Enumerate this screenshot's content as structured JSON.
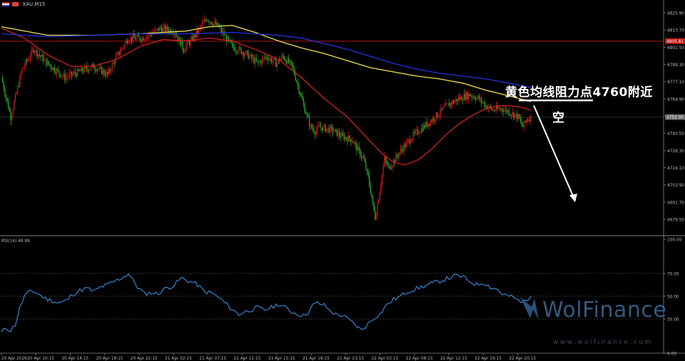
{
  "header": {
    "symbol_label": "XAU,M15"
  },
  "chart_data": [
    {
      "type": "candlestick",
      "symbol": "XAU",
      "timeframe": "M15",
      "ylim": [
        4670.0,
        4830.0
      ],
      "y_ticks": [
        "4825.90",
        "4813.70",
        "4801.50",
        "4789.30",
        "4777.10",
        "4764.90",
        "4752.70",
        "4740.50",
        "4728.30",
        "4716.10",
        "4703.90",
        "4691.70",
        "4679.50"
      ],
      "x_ticks": [
        "20 Apr 2026",
        "20 Apr 10:15",
        "20 Apr 14:15",
        "20 Apr 18:15",
        "20 Apr 22:15",
        "21 Apr 02:15",
        "21 Apr 07:15",
        "21 Apr 11:15",
        "21 Apr 15:15",
        "21 Apr 19:15",
        "21 Apr 23:15",
        "22 Apr 03:15",
        "22 Apr 08:15",
        "22 Apr 12:15",
        "22 Apr 16:15",
        "22 Apr 20:15"
      ],
      "resistance_label": "4805.81",
      "current_price_label": "4752.00",
      "close_path": [
        [
          0,
          4780
        ],
        [
          8,
          4752
        ],
        [
          18,
          4786
        ],
        [
          28,
          4800
        ],
        [
          40,
          4790
        ],
        [
          55,
          4780
        ],
        [
          70,
          4785
        ],
        [
          80,
          4788
        ],
        [
          92,
          4782
        ],
        [
          100,
          4795
        ],
        [
          110,
          4808
        ],
        [
          122,
          4808
        ],
        [
          138,
          4815
        ],
        [
          150,
          4813
        ],
        [
          158,
          4800
        ],
        [
          168,
          4810
        ],
        [
          178,
          4822
        ],
        [
          188,
          4816
        ],
        [
          200,
          4802
        ],
        [
          212,
          4797
        ],
        [
          222,
          4790
        ],
        [
          230,
          4795
        ],
        [
          238,
          4790
        ],
        [
          244,
          4795
        ],
        [
          252,
          4788
        ],
        [
          258,
          4772
        ],
        [
          262,
          4760
        ],
        [
          268,
          4745
        ],
        [
          272,
          4742
        ],
        [
          276,
          4745
        ],
        [
          280,
          4744
        ],
        [
          286,
          4743
        ],
        [
          296,
          4738
        ],
        [
          304,
          4736
        ],
        [
          308,
          4730
        ],
        [
          314,
          4722
        ],
        [
          318,
          4709
        ],
        [
          322,
          4690
        ],
        [
          324,
          4681
        ],
        [
          328,
          4700
        ],
        [
          332,
          4722
        ],
        [
          336,
          4716
        ],
        [
          346,
          4728
        ],
        [
          356,
          4738
        ],
        [
          366,
          4745
        ],
        [
          376,
          4752
        ],
        [
          386,
          4760
        ],
        [
          396,
          4765
        ],
        [
          406,
          4768
        ],
        [
          414,
          4765
        ],
        [
          420,
          4760
        ],
        [
          426,
          4757
        ],
        [
          434,
          4758
        ],
        [
          442,
          4755
        ],
        [
          448,
          4752
        ],
        [
          452,
          4745
        ],
        [
          455,
          4750
        ],
        [
          459,
          4752
        ]
      ],
      "series": [
        {
          "name": "",
          "color": "#d21f1f",
          "values": [
            [
              0,
              4815
            ],
            [
              20,
              4808
            ],
            [
              40,
              4796
            ],
            [
              60,
              4788
            ],
            [
              80,
              4788
            ],
            [
              100,
              4793
            ],
            [
              120,
              4802
            ],
            [
              140,
              4807
            ],
            [
              160,
              4806
            ],
            [
              180,
              4808
            ],
            [
              200,
              4806
            ],
            [
              220,
              4800
            ],
            [
              240,
              4793
            ],
            [
              260,
              4780
            ],
            [
              280,
              4765
            ],
            [
              300,
              4752
            ],
            [
              316,
              4738
            ],
            [
              330,
              4726
            ],
            [
              340,
              4720
            ],
            [
              350,
              4718
            ],
            [
              362,
              4722
            ],
            [
              374,
              4730
            ],
            [
              386,
              4740
            ],
            [
              398,
              4748
            ],
            [
              410,
              4754
            ],
            [
              420,
              4758
            ],
            [
              430,
              4760
            ],
            [
              440,
              4760
            ],
            [
              450,
              4759
            ],
            [
              459,
              4757
            ]
          ]
        },
        {
          "name": "",
          "color": "#f1e24a",
          "values": [
            [
              0,
              4816
            ],
            [
              40,
              4810
            ],
            [
              80,
              4810
            ],
            [
              120,
              4811
            ],
            [
              160,
              4813
            ],
            [
              180,
              4816
            ],
            [
              200,
              4817
            ],
            [
              220,
              4812
            ],
            [
              240,
              4806
            ],
            [
              260,
              4801
            ],
            [
              280,
              4797
            ],
            [
              300,
              4792
            ],
            [
              320,
              4787
            ],
            [
              340,
              4784
            ],
            [
              360,
              4781
            ],
            [
              380,
              4779
            ],
            [
              400,
              4776
            ],
            [
              420,
              4771
            ],
            [
              440,
              4767
            ],
            [
              459,
              4763
            ]
          ]
        },
        {
          "name": "",
          "color": "#2233dd",
          "values": [
            [
              0,
              4811
            ],
            [
              40,
              4809
            ],
            [
              80,
              4810
            ],
            [
              120,
              4811
            ],
            [
              160,
              4811
            ],
            [
              200,
              4812
            ],
            [
              240,
              4810
            ],
            [
              260,
              4808
            ],
            [
              280,
              4804
            ],
            [
              300,
              4800
            ],
            [
              320,
              4795
            ],
            [
              340,
              4790
            ],
            [
              360,
              4786
            ],
            [
              380,
              4783
            ],
            [
              400,
              4781
            ],
            [
              420,
              4779
            ],
            [
              440,
              4776
            ],
            [
              459,
              4773
            ]
          ]
        }
      ],
      "annotation": {
        "line1": "黄色均线阻力点4760附近",
        "line2": "空"
      }
    },
    {
      "type": "line",
      "name": "RSI(14) 48.99",
      "ylim": [
        0,
        100
      ],
      "y_ticks": [
        "100.00",
        "70.00",
        "50.00",
        "30.00",
        "0.00"
      ],
      "levels": [
        70,
        50,
        30
      ],
      "color": "#3d8ee0",
      "values": [
        [
          0,
          18
        ],
        [
          4,
          22
        ],
        [
          8,
          20
        ],
        [
          12,
          25
        ],
        [
          16,
          40
        ],
        [
          20,
          50
        ],
        [
          26,
          55
        ],
        [
          32,
          52
        ],
        [
          38,
          48
        ],
        [
          44,
          46
        ],
        [
          50,
          44
        ],
        [
          56,
          46
        ],
        [
          62,
          52
        ],
        [
          68,
          55
        ],
        [
          74,
          57
        ],
        [
          80,
          54
        ],
        [
          86,
          58
        ],
        [
          92,
          60
        ],
        [
          96,
          62
        ],
        [
          100,
          64
        ],
        [
          106,
          67
        ],
        [
          110,
          70
        ],
        [
          114,
          64
        ],
        [
          118,
          58
        ],
        [
          124,
          52
        ],
        [
          130,
          53
        ],
        [
          136,
          52
        ],
        [
          140,
          56
        ],
        [
          146,
          58
        ],
        [
          150,
          60
        ],
        [
          156,
          66
        ],
        [
          160,
          64
        ],
        [
          166,
          62
        ],
        [
          170,
          60
        ],
        [
          176,
          54
        ],
        [
          182,
          53
        ],
        [
          188,
          49
        ],
        [
          194,
          44
        ],
        [
          198,
          40
        ],
        [
          202,
          37
        ],
        [
          206,
          34
        ],
        [
          210,
          36
        ],
        [
          216,
          38
        ],
        [
          222,
          40
        ],
        [
          228,
          38
        ],
        [
          234,
          40
        ],
        [
          240,
          43
        ],
        [
          246,
          40
        ],
        [
          252,
          36
        ],
        [
          258,
          34
        ],
        [
          262,
          33
        ],
        [
          266,
          36
        ],
        [
          270,
          42
        ],
        [
          274,
          44
        ],
        [
          280,
          42
        ],
        [
          284,
          38
        ],
        [
          290,
          34
        ],
        [
          296,
          33
        ],
        [
          300,
          30
        ],
        [
          304,
          27
        ],
        [
          308,
          24
        ],
        [
          312,
          20
        ],
        [
          316,
          24
        ],
        [
          320,
          28
        ],
        [
          324,
          32
        ],
        [
          328,
          34
        ],
        [
          332,
          40
        ],
        [
          336,
          44
        ],
        [
          340,
          47
        ],
        [
          346,
          50
        ],
        [
          352,
          54
        ],
        [
          358,
          56
        ],
        [
          364,
          58
        ],
        [
          370,
          60
        ],
        [
          376,
          62
        ],
        [
          382,
          64
        ],
        [
          388,
          66
        ],
        [
          394,
          68
        ],
        [
          400,
          67
        ],
        [
          404,
          64
        ],
        [
          408,
          62
        ],
        [
          412,
          60
        ],
        [
          418,
          62
        ],
        [
          424,
          58
        ],
        [
          430,
          56
        ],
        [
          434,
          52
        ],
        [
          440,
          50
        ],
        [
          446,
          48
        ],
        [
          450,
          44
        ],
        [
          454,
          46
        ],
        [
          459,
          50
        ]
      ]
    }
  ],
  "watermark": {
    "brand": "WolFinance",
    "url": "www.wolfinance.com"
  }
}
